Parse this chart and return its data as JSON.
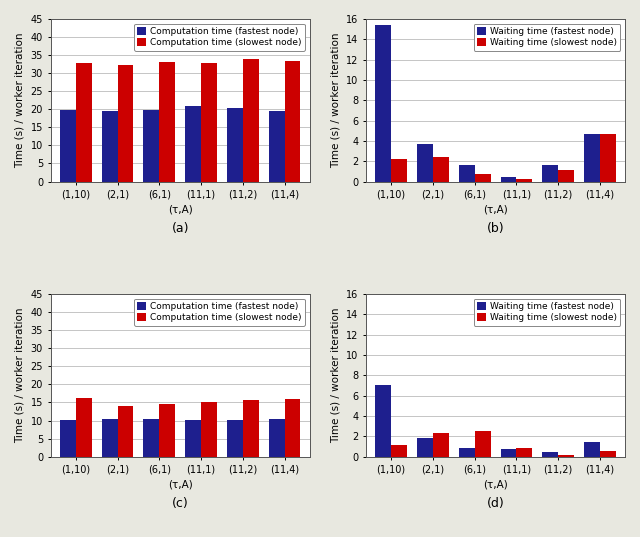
{
  "categories": [
    "(1,10)",
    "(2,1)",
    "(6,1)",
    "(11,1)",
    "(11,2)",
    "(11,4)"
  ],
  "xlabel": "(τ,A)",
  "ax_a": {
    "blue_vals": [
      19.8,
      19.4,
      19.7,
      20.9,
      20.3,
      19.4
    ],
    "red_vals": [
      32.7,
      32.4,
      33.0,
      32.7,
      34.0,
      33.3
    ],
    "ylim": [
      0,
      45
    ],
    "yticks": [
      0,
      5,
      10,
      15,
      20,
      25,
      30,
      35,
      40,
      45
    ],
    "legend1": "Computation time (fastest node)",
    "legend2": "Computation time (slowest node)",
    "ylabel": "Time (s) / worker iteration",
    "label": "(a)"
  },
  "ax_b": {
    "blue_vals": [
      15.4,
      3.7,
      1.6,
      0.4,
      1.6,
      4.7
    ],
    "red_vals": [
      2.2,
      2.4,
      0.7,
      0.25,
      1.1,
      4.7
    ],
    "ylim": [
      0,
      16
    ],
    "yticks": [
      0,
      2,
      4,
      6,
      8,
      10,
      12,
      14,
      16
    ],
    "legend1": "Waiting time (fastest node)",
    "legend2": "Waiting time (slowest node)",
    "ylabel": "Time (s) / worker iteration",
    "label": "(b)"
  },
  "ax_c": {
    "blue_vals": [
      10.1,
      10.5,
      10.3,
      10.2,
      10.2,
      10.5
    ],
    "red_vals": [
      16.1,
      13.9,
      14.6,
      15.1,
      15.6,
      16.0
    ],
    "ylim": [
      0,
      45
    ],
    "yticks": [
      0,
      5,
      10,
      15,
      20,
      25,
      30,
      35,
      40,
      45
    ],
    "legend1": "Computation time (fastest node)",
    "legend2": "Computation time (slowest node)",
    "ylabel": "Time (s) / worker iteration",
    "label": "(c)"
  },
  "ax_d": {
    "blue_vals": [
      7.1,
      1.85,
      0.9,
      0.8,
      0.5,
      1.45
    ],
    "red_vals": [
      1.1,
      2.3,
      2.5,
      0.85,
      0.2,
      0.6
    ],
    "ylim": [
      0,
      16
    ],
    "yticks": [
      0,
      2,
      4,
      6,
      8,
      10,
      12,
      14,
      16
    ],
    "legend1": "Waiting time (fastest node)",
    "legend2": "Waiting time (slowest node)",
    "ylabel": "Time (s) / worker iteration",
    "label": "(d)"
  },
  "blue_color": "#1e1f8e",
  "red_color": "#cc0000",
  "bar_width": 0.38,
  "grid_color": "#bbbbbb",
  "bg_color": "#ffffff",
  "fig_bg_color": "#e8e8e0",
  "label_fontsize": 7.5,
  "tick_fontsize": 7,
  "legend_fontsize": 6.5,
  "caption_fontsize": 9
}
